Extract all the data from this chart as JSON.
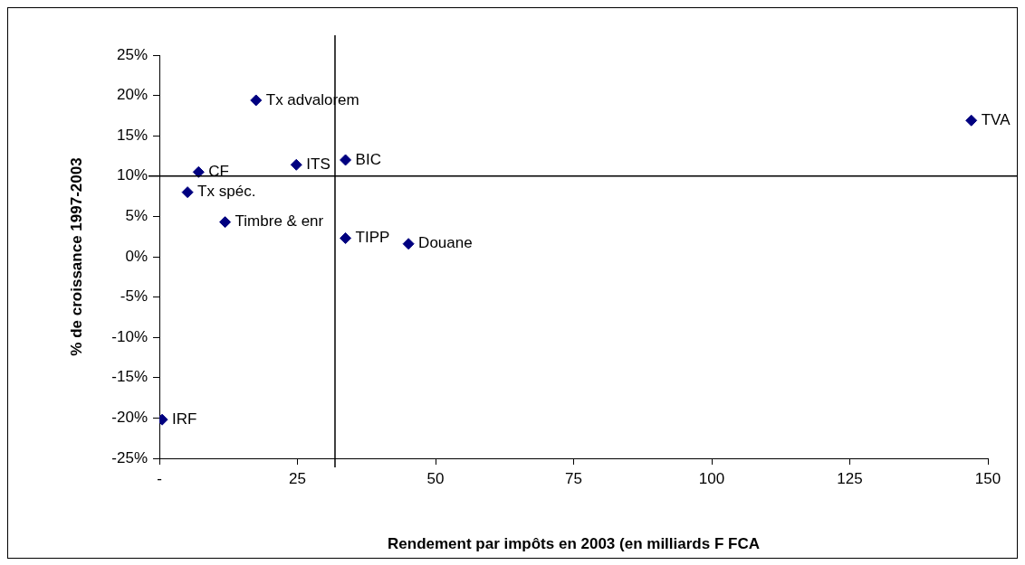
{
  "chart_data": {
    "type": "scatter",
    "xlabel": "Rendement par impôts en 2003 (en milliards F FCA",
    "ylabel": "% de croissance 1997-2003",
    "x": [
      17.5,
      7.1,
      5.1,
      11.9,
      24.8,
      33.7,
      33.7,
      45.1,
      0.5,
      147.0
    ],
    "series": [
      {
        "color": "#000080",
        "values": [
          19.4,
          10.5,
          8.0,
          4.3,
          11.4,
          12.0,
          2.3,
          1.6,
          -20.2,
          16.9
        ]
      }
    ],
    "annotations": [
      {
        "text": "Tx advalorem",
        "x": 17.5,
        "y": 19.4
      },
      {
        "text": "CF",
        "x": 7.1,
        "y": 10.5
      },
      {
        "text": "Tx spéc.",
        "x": 5.1,
        "y": 8.0
      },
      {
        "text": "Timbre & enr",
        "x": 11.9,
        "y": 4.3
      },
      {
        "text": "ITS",
        "x": 24.8,
        "y": 11.4
      },
      {
        "text": "BIC",
        "x": 33.7,
        "y": 12.0
      },
      {
        "text": "TIPP",
        "x": 33.7,
        "y": 2.3
      },
      {
        "text": "Douane",
        "x": 45.1,
        "y": 1.6
      },
      {
        "text": "IRF",
        "x": 0.5,
        "y": -20.2
      },
      {
        "text": "TVA",
        "x": 147.0,
        "y": 16.9
      }
    ],
    "ref_lines": [
      {
        "axis": "x",
        "value": 31.8,
        "color": "#000000"
      },
      {
        "axis": "y",
        "value": 10,
        "color": "#000000"
      }
    ],
    "xlim": [
      0,
      150
    ],
    "xticks": [
      {
        "value": 0,
        "label": "-"
      },
      25,
      50,
      75,
      100,
      125,
      150
    ],
    "ylim": [
      -25,
      25
    ],
    "yticks": [
      {
        "value": -25,
        "label": "-25%"
      },
      {
        "value": -20,
        "label": "-20%"
      },
      {
        "value": -15,
        "label": "-15%"
      },
      {
        "value": -10,
        "label": "-10%"
      },
      {
        "value": -5,
        "label": "-5%"
      },
      {
        "value": 0,
        "label": "0%"
      },
      {
        "value": 5,
        "label": "5%"
      },
      {
        "value": 10,
        "label": "10%"
      },
      {
        "value": 15,
        "label": "15%"
      },
      {
        "value": 20,
        "label": "20%"
      },
      {
        "value": 25,
        "label": "25%"
      }
    ],
    "grid": false,
    "legend": false,
    "marker": "diamond"
  }
}
